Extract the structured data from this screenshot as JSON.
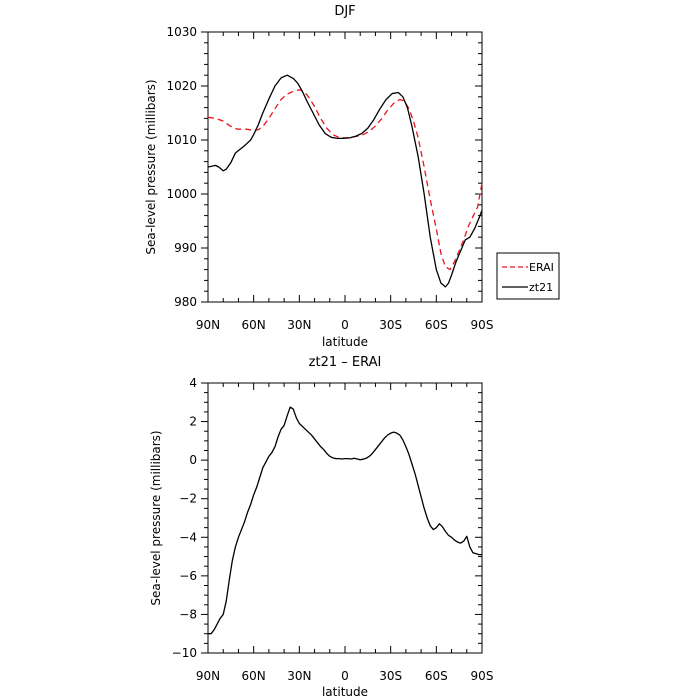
{
  "chart_data": [
    {
      "type": "line",
      "title": "DJF",
      "xlabel": "latitude",
      "ylabel": "Sea-level pressure (millibars)",
      "xlim": [
        -90,
        90
      ],
      "ylim": [
        980,
        1030
      ],
      "x_ticks": [
        -90,
        -60,
        -30,
        0,
        30,
        60,
        90
      ],
      "x_tick_labels": [
        "90N",
        "60N",
        "30N",
        "0",
        "30S",
        "60S",
        "90S"
      ],
      "y_ticks": [
        980,
        990,
        1000,
        1010,
        1020,
        1030
      ],
      "y_tick_labels": [
        "980",
        "990",
        "1000",
        "1010",
        "1020",
        "1030"
      ],
      "legend": "outside-right",
      "series": [
        {
          "name": "ERAI",
          "color": "#e8141d",
          "dash": "dashed",
          "x": [
            -90,
            -85,
            -80,
            -76,
            -73,
            -70,
            -65,
            -60,
            -57,
            -54,
            -50,
            -46,
            -42,
            -38,
            -34,
            -30,
            -27,
            -24,
            -20,
            -16,
            -12,
            -8,
            -4,
            0,
            4,
            8,
            12,
            16,
            20,
            24,
            28,
            32,
            36,
            39,
            42,
            45,
            48,
            52,
            56,
            60,
            63,
            66,
            69,
            72,
            75,
            78,
            81,
            84,
            87,
            90
          ],
          "values": [
            1014.2,
            1014.0,
            1013.5,
            1012.7,
            1012.2,
            1012.0,
            1012.0,
            1011.8,
            1011.9,
            1012.5,
            1014.0,
            1015.8,
            1017.5,
            1018.5,
            1019.0,
            1019.3,
            1019.0,
            1018.0,
            1016.2,
            1014.0,
            1012.2,
            1011.0,
            1010.5,
            1010.4,
            1010.5,
            1010.7,
            1011.0,
            1011.6,
            1012.6,
            1013.9,
            1015.5,
            1016.8,
            1017.5,
            1017.2,
            1015.8,
            1013.5,
            1010.5,
            1005.0,
            999.0,
            993.5,
            989.0,
            986.5,
            986.0,
            987.5,
            989.5,
            991.5,
            994.0,
            995.8,
            997.5,
            1002.0
          ]
        },
        {
          "name": "zt21",
          "color": "#000000",
          "dash": "solid",
          "x": [
            -90,
            -85,
            -83,
            -80,
            -78,
            -75,
            -72,
            -68,
            -65,
            -62,
            -60,
            -57,
            -54,
            -50,
            -46,
            -42,
            -38,
            -34,
            -31,
            -28,
            -25,
            -21,
            -17,
            -13,
            -9,
            -5,
            -1,
            3,
            7,
            11,
            15,
            19,
            23,
            27,
            31,
            35,
            38,
            41,
            44,
            48,
            52,
            56,
            60,
            63,
            66,
            68,
            70,
            73,
            76,
            79,
            82,
            85,
            88,
            90
          ],
          "values": [
            1005.0,
            1005.3,
            1005.0,
            1004.3,
            1004.6,
            1005.8,
            1007.6,
            1008.5,
            1009.2,
            1010.0,
            1011.0,
            1012.8,
            1015.0,
            1017.6,
            1020.0,
            1021.5,
            1022.0,
            1021.4,
            1020.5,
            1019.0,
            1017.2,
            1015.0,
            1012.8,
            1011.2,
            1010.5,
            1010.3,
            1010.3,
            1010.4,
            1010.7,
            1011.2,
            1012.2,
            1013.8,
            1015.8,
            1017.5,
            1018.6,
            1018.8,
            1018.0,
            1016.0,
            1012.5,
            1007.0,
            1000.0,
            992.0,
            986.0,
            983.5,
            982.8,
            983.5,
            985.0,
            987.5,
            989.5,
            991.5,
            992.0,
            993.5,
            995.5,
            997.0
          ]
        }
      ]
    },
    {
      "type": "line",
      "title": "zt21 – ERAI",
      "xlabel": "latitude",
      "ylabel": "Sea-level pressure (millibars)",
      "xlim": [
        -90,
        90
      ],
      "ylim": [
        -10,
        4
      ],
      "x_ticks": [
        -90,
        -60,
        -30,
        0,
        30,
        60,
        90
      ],
      "x_tick_labels": [
        "90N",
        "60N",
        "30N",
        "0",
        "30S",
        "60S",
        "90S"
      ],
      "y_ticks": [
        -10,
        -8,
        -6,
        -4,
        -2,
        0,
        2,
        4
      ],
      "y_tick_labels": [
        "−10",
        "−8",
        "−6",
        "−4",
        "−2",
        "0",
        "2",
        "4"
      ],
      "series": [
        {
          "color": "#000000",
          "dash": "solid",
          "x": [
            -90,
            -88,
            -86,
            -84,
            -82,
            -80,
            -78,
            -76,
            -74,
            -72,
            -70,
            -68,
            -66,
            -64,
            -62,
            -60,
            -58,
            -56,
            -54,
            -52,
            -50,
            -48,
            -46,
            -44,
            -42,
            -40,
            -38,
            -36,
            -34,
            -32,
            -30,
            -28,
            -26,
            -24,
            -22,
            -20,
            -18,
            -16,
            -14,
            -12,
            -10,
            -8,
            -6,
            -4,
            -2,
            0,
            2,
            4,
            6,
            8,
            10,
            12,
            14,
            16,
            18,
            20,
            22,
            24,
            26,
            28,
            30,
            32,
            34,
            36,
            38,
            40,
            42,
            44,
            46,
            48,
            50,
            52,
            54,
            56,
            58,
            60,
            62,
            64,
            66,
            68,
            70,
            72,
            74,
            76,
            78,
            80,
            82,
            84,
            86,
            88,
            90
          ],
          "values": [
            -9.0,
            -9.0,
            -8.8,
            -8.5,
            -8.2,
            -8.0,
            -7.3,
            -6.2,
            -5.2,
            -4.5,
            -4.0,
            -3.6,
            -3.2,
            -2.7,
            -2.3,
            -1.8,
            -1.4,
            -0.9,
            -0.4,
            -0.1,
            0.2,
            0.4,
            0.7,
            1.2,
            1.6,
            1.8,
            2.3,
            2.75,
            2.65,
            2.2,
            1.9,
            1.75,
            1.6,
            1.45,
            1.3,
            1.1,
            0.9,
            0.7,
            0.55,
            0.35,
            0.2,
            0.12,
            0.08,
            0.08,
            0.06,
            0.08,
            0.08,
            0.06,
            0.1,
            0.06,
            0.02,
            0.05,
            0.1,
            0.2,
            0.35,
            0.55,
            0.75,
            0.95,
            1.15,
            1.3,
            1.4,
            1.45,
            1.4,
            1.3,
            1.05,
            0.7,
            0.3,
            -0.2,
            -0.7,
            -1.3,
            -1.9,
            -2.5,
            -3.0,
            -3.4,
            -3.6,
            -3.5,
            -3.3,
            -3.45,
            -3.7,
            -3.9,
            -4.0,
            -4.15,
            -4.25,
            -4.3,
            -4.2,
            -3.95,
            -4.5,
            -4.8,
            -4.85,
            -4.9,
            -4.9
          ]
        }
      ]
    }
  ]
}
